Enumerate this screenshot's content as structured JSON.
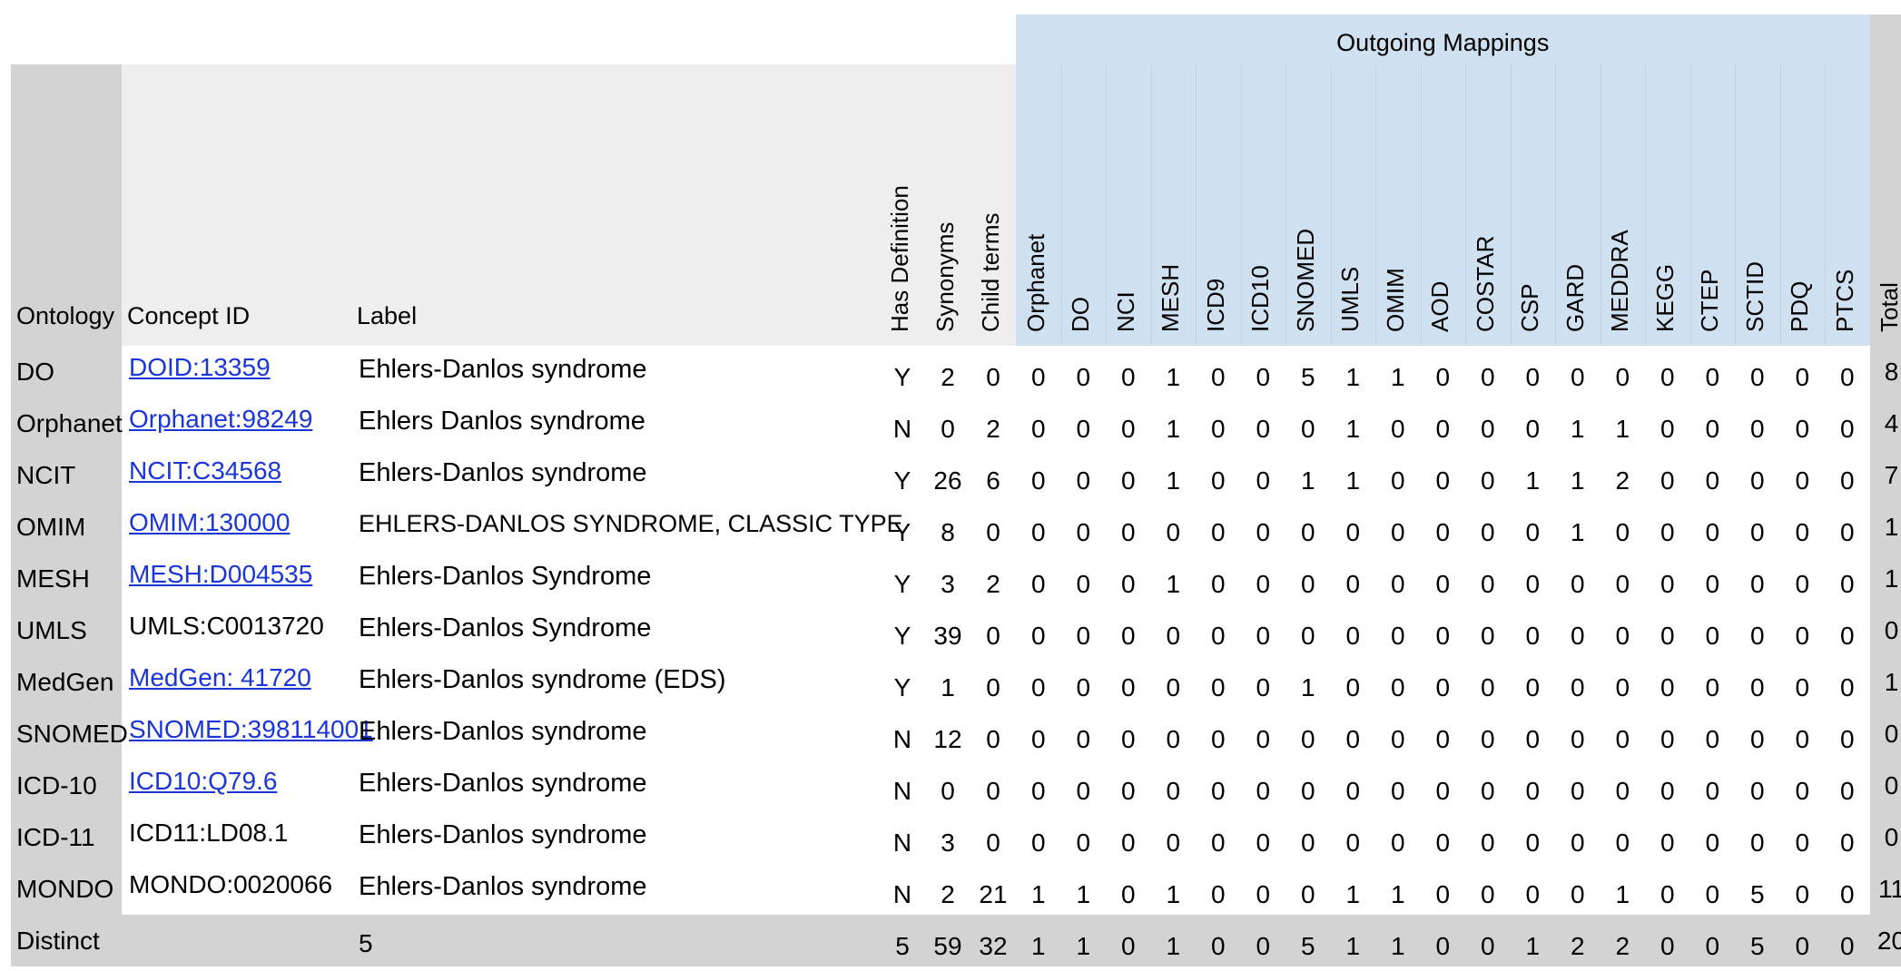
{
  "group_header": "Outgoing Mappings",
  "headers": {
    "ontology": "Ontology",
    "concept_id": "Concept ID",
    "label": "Label",
    "has_definition": "Has Definition",
    "synonyms": "Synonyms",
    "child_terms": "Child terms",
    "total": "Total"
  },
  "mapping_columns": [
    "Orphanet",
    "DO",
    "NCI",
    "MESH",
    "ICD9",
    "ICD10",
    "SNOMED",
    "UMLS",
    "OMIM",
    "AOD",
    "COSTAR",
    "CSP",
    "GARD",
    "MEDDRA",
    "KEGG",
    "CTEP",
    "SCTID",
    "PDQ",
    "PTCS"
  ],
  "rows": [
    {
      "ontology": "DO",
      "concept_id": "DOID:13359",
      "linked": true,
      "label": "Ehlers-Danlos syndrome",
      "has_def": "Y",
      "synonyms": "2",
      "child_terms": "0",
      "mappings": [
        "0",
        "0",
        "0",
        "1",
        "0",
        "0",
        "5",
        "1",
        "1",
        "0",
        "0",
        "0",
        "0",
        "0",
        "0",
        "0",
        "0",
        "0",
        "0"
      ],
      "total": "8"
    },
    {
      "ontology": "Orphanet",
      "concept_id": "Orphanet:98249",
      "linked": true,
      "label": "Ehlers Danlos syndrome",
      "has_def": "N",
      "synonyms": "0",
      "child_terms": "2",
      "mappings": [
        "0",
        "0",
        "0",
        "1",
        "0",
        "0",
        "0",
        "1",
        "0",
        "0",
        "0",
        "0",
        "1",
        "1",
        "0",
        "0",
        "0",
        "0",
        "0"
      ],
      "total": "4"
    },
    {
      "ontology": "NCIT",
      "concept_id": "NCIT:C34568",
      "linked": true,
      "label": "Ehlers-Danlos syndrome",
      "has_def": "Y",
      "synonyms": "26",
      "child_terms": "6",
      "mappings": [
        "0",
        "0",
        "0",
        "1",
        "0",
        "0",
        "1",
        "1",
        "0",
        "0",
        "0",
        "1",
        "1",
        "2",
        "0",
        "0",
        "0",
        "0",
        "0"
      ],
      "total": "7"
    },
    {
      "ontology": "OMIM",
      "concept_id": "OMIM:130000",
      "linked": true,
      "label": "EHLERS-DANLOS SYNDROME, CLASSIC TYPE",
      "has_def": "Y",
      "synonyms": "8",
      "child_terms": "0",
      "mappings": [
        "0",
        "0",
        "0",
        "0",
        "0",
        "0",
        "0",
        "0",
        "0",
        "0",
        "0",
        "0",
        "1",
        "0",
        "0",
        "0",
        "0",
        "0",
        "0"
      ],
      "total": "1"
    },
    {
      "ontology": "MESH",
      "concept_id": "MESH:D004535",
      "linked": true,
      "label": "Ehlers-Danlos Syndrome",
      "has_def": "Y",
      "synonyms": "3",
      "child_terms": "2",
      "mappings": [
        "0",
        "0",
        "0",
        "1",
        "0",
        "0",
        "0",
        "0",
        "0",
        "0",
        "0",
        "0",
        "0",
        "0",
        "0",
        "0",
        "0",
        "0",
        "0"
      ],
      "total": "1"
    },
    {
      "ontology": "UMLS",
      "concept_id": "UMLS:C0013720",
      "linked": false,
      "label": "Ehlers-Danlos Syndrome",
      "has_def": "Y",
      "synonyms": "39",
      "child_terms": "0",
      "mappings": [
        "0",
        "0",
        "0",
        "0",
        "0",
        "0",
        "0",
        "0",
        "0",
        "0",
        "0",
        "0",
        "0",
        "0",
        "0",
        "0",
        "0",
        "0",
        "0"
      ],
      "total": "0"
    },
    {
      "ontology": "MedGen",
      "concept_id": "MedGen: 41720",
      "linked": true,
      "label": "Ehlers-Danlos syndrome (EDS)",
      "has_def": "Y",
      "synonyms": "1",
      "child_terms": "0",
      "mappings": [
        "0",
        "0",
        "0",
        "0",
        "0",
        "0",
        "1",
        "0",
        "0",
        "0",
        "0",
        "0",
        "0",
        "0",
        "0",
        "0",
        "0",
        "0",
        "0"
      ],
      "total": "1"
    },
    {
      "ontology": "SNOMED",
      "concept_id": "SNOMED:398114001",
      "linked": true,
      "label": "Ehlers-Danlos syndrome",
      "has_def": "N",
      "synonyms": "12",
      "child_terms": "0",
      "mappings": [
        "0",
        "0",
        "0",
        "0",
        "0",
        "0",
        "0",
        "0",
        "0",
        "0",
        "0",
        "0",
        "0",
        "0",
        "0",
        "0",
        "0",
        "0",
        "0"
      ],
      "total": "0"
    },
    {
      "ontology": "ICD-10",
      "concept_id": "ICD10:Q79.6",
      "linked": true,
      "label": "Ehlers-Danlos syndrome",
      "has_def": "N",
      "synonyms": "0",
      "child_terms": "0",
      "mappings": [
        "0",
        "0",
        "0",
        "0",
        "0",
        "0",
        "0",
        "0",
        "0",
        "0",
        "0",
        "0",
        "0",
        "0",
        "0",
        "0",
        "0",
        "0",
        "0"
      ],
      "total": "0"
    },
    {
      "ontology": "ICD-11",
      "concept_id": "ICD11:LD08.1",
      "linked": false,
      "label": "Ehlers-Danlos syndrome",
      "has_def": "N",
      "synonyms": "3",
      "child_terms": "0",
      "mappings": [
        "0",
        "0",
        "0",
        "0",
        "0",
        "0",
        "0",
        "0",
        "0",
        "0",
        "0",
        "0",
        "0",
        "0",
        "0",
        "0",
        "0",
        "0",
        "0"
      ],
      "total": "0"
    },
    {
      "ontology": "MONDO",
      "concept_id": "MONDO:0020066",
      "linked": false,
      "label": "Ehlers-Danlos syndrome",
      "has_def": "N",
      "synonyms": "2",
      "child_terms": "21",
      "mappings": [
        "1",
        "1",
        "0",
        "1",
        "0",
        "0",
        "0",
        "1",
        "1",
        "0",
        "0",
        "0",
        "0",
        "1",
        "0",
        "0",
        "5",
        "0",
        "0"
      ],
      "total": "11"
    }
  ],
  "distinct_row": {
    "ontology": "Distinct",
    "concept_id": "",
    "label": "5",
    "has_def": "5",
    "synonyms": "59",
    "child_terms": "32",
    "mappings": [
      "1",
      "1",
      "0",
      "1",
      "0",
      "0",
      "5",
      "1",
      "1",
      "0",
      "0",
      "1",
      "2",
      "2",
      "0",
      "0",
      "5",
      "0",
      "0"
    ],
    "total": "20"
  },
  "colors": {
    "gray": "#d3d3d3",
    "light": "#eeeeee",
    "blue": "#cfe0f0",
    "link": "#1a36d9"
  }
}
